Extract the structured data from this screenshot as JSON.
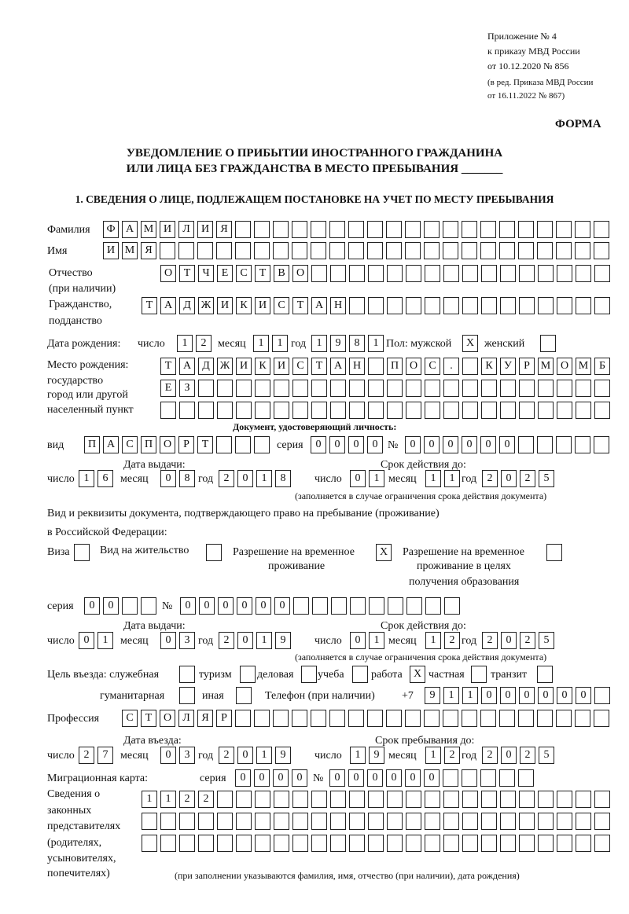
{
  "header": {
    "line1": "Приложение № 4",
    "line2": "к приказу МВД России",
    "line3": "от 10.12.2020 № 856",
    "line4": "(в ред. Приказа МВД России",
    "line5": "от 16.11.2022 № 867)",
    "forma": "ФОРМА"
  },
  "title": {
    "line1": "УВЕДОМЛЕНИЕ О ПРИБЫТИИ ИНОСТРАННОГО ГРАЖДАНИНА",
    "line2": "ИЛИ ЛИЦА БЕЗ ГРАЖДАНСТВА В МЕСТО ПРЕБЫВАНИЯ _______"
  },
  "section1": "1. СВЕДЕНИЯ О ЛИЦЕ, ПОДЛЕЖАЩЕМ ПОСТАНОВКЕ НА УЧЕТ ПО МЕСТУ ПРЕБЫВАНИЯ",
  "labels": {
    "surname": "Фамилия",
    "name": "Имя",
    "patronymic": "Отчество",
    "patronymic2": "(при наличии)",
    "citizenship": "Гражданство,",
    "citizenship2": "подданство",
    "birth_date": "Дата рождения:",
    "day": "число",
    "month": "месяц",
    "year": "год",
    "sex": "Пол: мужской",
    "female": "женский",
    "birth_place": "Место рождения:",
    "bp2": "государство",
    "bp3": "город или другой",
    "bp4": "населенный пункт",
    "id_doc": "Документ, удостоверяющий личность:",
    "kind": "вид",
    "series": "серия",
    "number": "№",
    "issue_date": "Дата выдачи:",
    "valid_until": "Срок действия до:",
    "valid_note": "(заполняется в случае ограничения срока действия документа)",
    "permit1": "Вид и реквизиты документа, подтверждающего право на пребывание (проживание)",
    "permit2": "в Российской Федерации:",
    "visa": "Виза",
    "residence": "Вид на жительство",
    "temp_res1": "Разрешение на временное",
    "temp_res2": "проживание",
    "temp_edu1": "Разрешение на временное",
    "temp_edu2": "проживание в целях",
    "temp_edu3": "получения образования",
    "purpose": "Цель въезда: служебная",
    "tourism": "туризм",
    "business": "деловая",
    "study": "учеба",
    "work": "работа",
    "private": "частная",
    "transit": "транзит",
    "humanitarian": "гуманитарная",
    "other": "иная",
    "phone": "Телефон (при наличии)",
    "phone_prefix": "+7",
    "profession": "Профессия",
    "entry_date": "Дата въезда:",
    "stay_until": "Срок пребывания до:",
    "migration_card": "Миграционная карта:",
    "reps1": "Сведения о",
    "reps2": "законных",
    "reps3": "представителях",
    "reps4": "(родителях,",
    "reps5": "усыновителях,",
    "reps6": "попечителях)",
    "reps_note": "(при заполнении указываются фамилия, имя, отчество (при наличии), дата рождения)"
  },
  "fields": {
    "surname": "ФАМИЛИЯ",
    "name": "ИМЯ",
    "patronymic": "ОТЧЕСТВО",
    "citizenship": "ТАДЖИКИСТАН",
    "birth_day": "12",
    "birth_month": "11",
    "birth_year": "1981",
    "sex_male": "X",
    "sex_female": "",
    "birth_place1": "ТАДЖИКИСТАН ПОС. КУРМОМБ",
    "birth_place2": "ЕЗ",
    "birth_place3": "",
    "doc_kind": "ПАСПОРТ",
    "doc_series": "0000",
    "doc_number": "000000",
    "doc_issue_day": "16",
    "doc_issue_month": "08",
    "doc_issue_year": "2018",
    "doc_valid_day": "01",
    "doc_valid_month": "11",
    "doc_valid_year": "2025",
    "visa": "",
    "residence": "",
    "temp_res": "X",
    "temp_edu": "",
    "permit_series": "00",
    "permit_number": "000000",
    "permit_issue_day": "01",
    "permit_issue_month": "03",
    "permit_issue_year": "2019",
    "permit_valid_day": "01",
    "permit_valid_month": "12",
    "permit_valid_year": "2025",
    "p_service": "",
    "p_tourism": "",
    "p_business": "",
    "p_study": "",
    "p_work": "X",
    "p_private": "",
    "p_transit": "",
    "p_humanitarian": "",
    "p_other": "",
    "phone": "911000000",
    "profession": "СТОЛЯР",
    "entry_day": "27",
    "entry_month": "03",
    "entry_year": "2019",
    "stay_day": "19",
    "stay_month": "12",
    "stay_year": "2025",
    "mig_series": "0000",
    "mig_number": "000000",
    "reps1": "1122",
    "reps2": "",
    "reps3": ""
  }
}
